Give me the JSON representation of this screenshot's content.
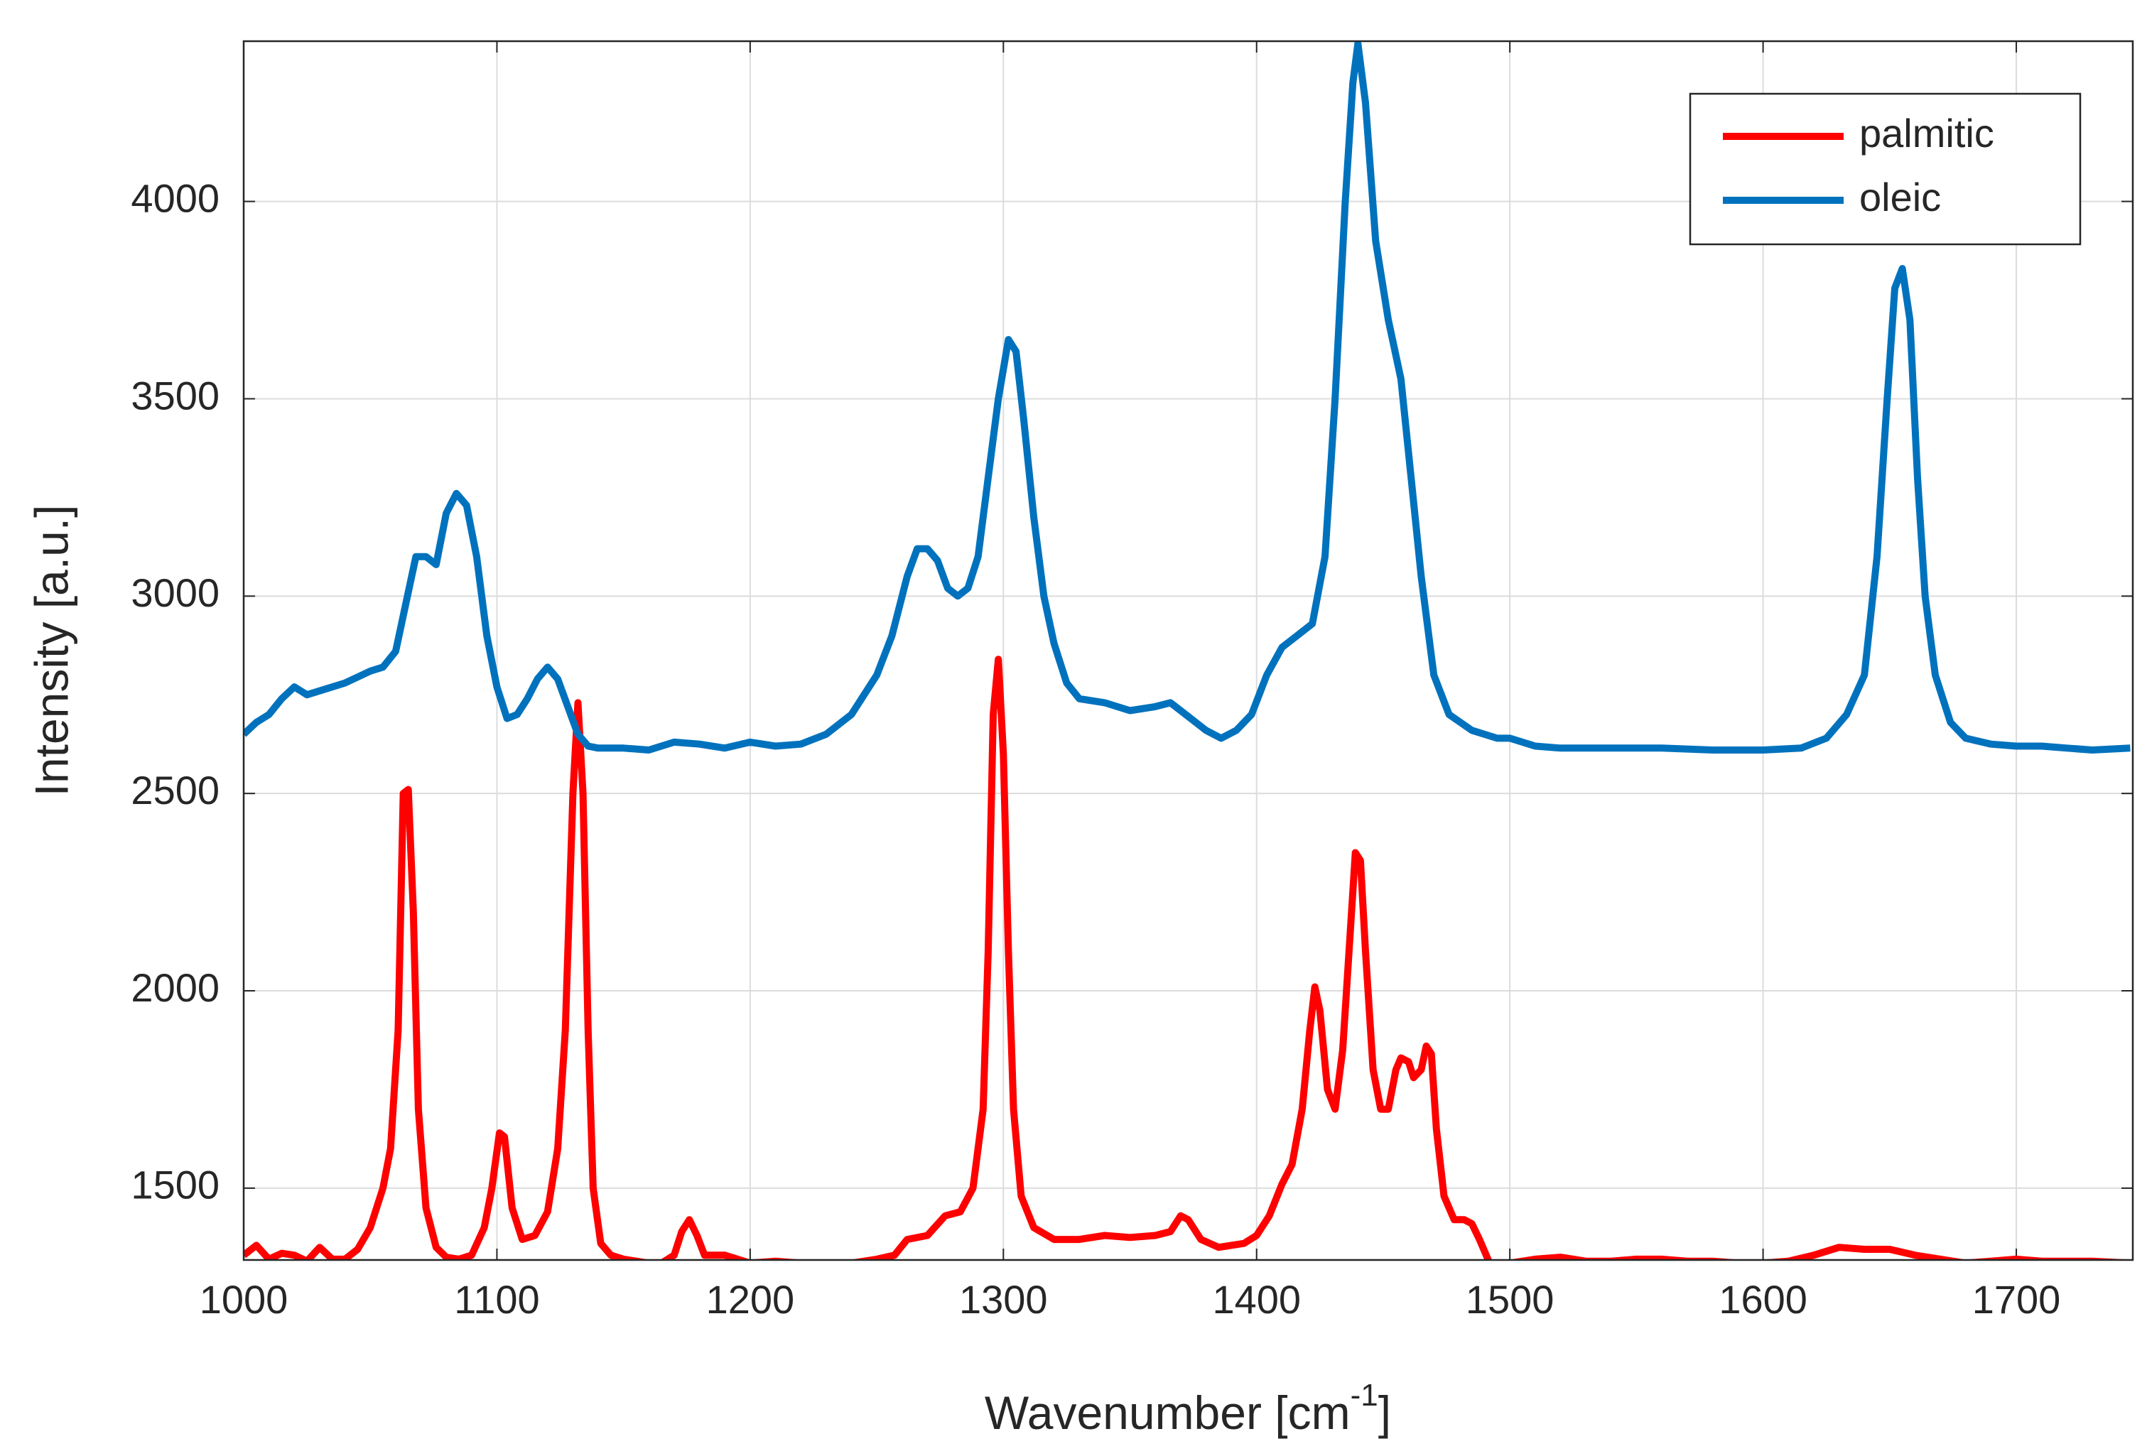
{
  "chart_data": {
    "type": "line",
    "x_label": "Wavenumber [cm",
    "x_label_sup": "-1",
    "x_label_end": "]",
    "y_label": "Intensity [a.u.]",
    "xlim": [
      1000,
      1746
    ],
    "ylim": [
      1318,
      4406
    ],
    "xticks": [
      1000,
      1100,
      1200,
      1300,
      1400,
      1500,
      1600,
      1700
    ],
    "yticks": [
      1500,
      2000,
      2500,
      3000,
      3500,
      4000
    ],
    "grid": true,
    "legend": "northeast",
    "series": [
      {
        "name": "palmitic",
        "color": "#ff0000",
        "x": [
          1000,
          1005,
          1010,
          1015,
          1020,
          1025,
          1030,
          1035,
          1040,
          1045,
          1050,
          1055,
          1058,
          1061,
          1063,
          1065,
          1067,
          1069,
          1072,
          1076,
          1080,
          1085,
          1090,
          1095,
          1098,
          1101,
          1103,
          1106,
          1110,
          1115,
          1120,
          1124,
          1127,
          1130,
          1132,
          1134,
          1136,
          1138,
          1141,
          1145,
          1150,
          1160,
          1165,
          1170,
          1173,
          1176,
          1179,
          1182,
          1190,
          1200,
          1210,
          1220,
          1230,
          1240,
          1250,
          1257,
          1262,
          1270,
          1277,
          1283,
          1288,
          1292,
          1294,
          1296,
          1298,
          1300,
          1302,
          1304,
          1307,
          1312,
          1320,
          1330,
          1340,
          1350,
          1360,
          1366,
          1370,
          1373,
          1378,
          1385,
          1395,
          1400,
          1405,
          1410,
          1414,
          1418,
          1421,
          1423,
          1425,
          1428,
          1431,
          1434,
          1437,
          1439,
          1441,
          1443,
          1446,
          1449,
          1452,
          1455,
          1457,
          1460,
          1462,
          1465,
          1467,
          1469,
          1471,
          1474,
          1478,
          1482,
          1485,
          1488,
          1492,
          1500,
          1510,
          1520,
          1530,
          1540,
          1550,
          1560,
          1570,
          1580,
          1590,
          1600,
          1610,
          1620,
          1630,
          1640,
          1650,
          1660,
          1670,
          1680,
          1690,
          1700,
          1710,
          1720,
          1730,
          1745
        ],
        "values": [
          1330,
          1355,
          1320,
          1335,
          1330,
          1315,
          1350,
          1320,
          1320,
          1345,
          1400,
          1500,
          1600,
          1900,
          2500,
          2510,
          2200,
          1700,
          1450,
          1350,
          1325,
          1320,
          1330,
          1400,
          1500,
          1640,
          1630,
          1450,
          1370,
          1380,
          1440,
          1600,
          1900,
          2500,
          2730,
          2500,
          1900,
          1500,
          1360,
          1330,
          1320,
          1310,
          1310,
          1330,
          1390,
          1420,
          1380,
          1330,
          1330,
          1310,
          1315,
          1310,
          1310,
          1310,
          1320,
          1330,
          1370,
          1380,
          1430,
          1440,
          1500,
          1700,
          2100,
          2700,
          2840,
          2600,
          2100,
          1700,
          1480,
          1400,
          1370,
          1370,
          1380,
          1375,
          1380,
          1390,
          1430,
          1420,
          1370,
          1350,
          1360,
          1380,
          1430,
          1510,
          1560,
          1700,
          1900,
          2010,
          1950,
          1750,
          1700,
          1850,
          2150,
          2350,
          2330,
          2100,
          1800,
          1700,
          1700,
          1800,
          1830,
          1820,
          1780,
          1800,
          1860,
          1840,
          1650,
          1480,
          1420,
          1420,
          1410,
          1370,
          1310,
          1310,
          1320,
          1325,
          1315,
          1315,
          1320,
          1320,
          1315,
          1315,
          1310,
          1310,
          1315,
          1330,
          1350,
          1345,
          1345,
          1330,
          1320,
          1310,
          1315,
          1320,
          1315,
          1315,
          1315,
          1310
        ]
      },
      {
        "name": "oleic",
        "color": "#0072bd",
        "x": [
          1000,
          1005,
          1010,
          1015,
          1020,
          1025,
          1030,
          1040,
          1050,
          1055,
          1060,
          1064,
          1068,
          1072,
          1076,
          1080,
          1084,
          1088,
          1092,
          1096,
          1100,
          1104,
          1108,
          1112,
          1116,
          1120,
          1124,
          1128,
          1132,
          1136,
          1140,
          1150,
          1160,
          1170,
          1180,
          1190,
          1200,
          1210,
          1220,
          1230,
          1240,
          1250,
          1256,
          1262,
          1266,
          1270,
          1274,
          1278,
          1282,
          1286,
          1290,
          1294,
          1298,
          1302,
          1305,
          1308,
          1312,
          1316,
          1320,
          1325,
          1330,
          1340,
          1350,
          1360,
          1366,
          1372,
          1380,
          1386,
          1392,
          1398,
          1404,
          1410,
          1416,
          1422,
          1427,
          1431,
          1435,
          1438,
          1440,
          1443,
          1447,
          1452,
          1457,
          1461,
          1465,
          1470,
          1476,
          1485,
          1495,
          1500,
          1510,
          1520,
          1540,
          1560,
          1580,
          1600,
          1615,
          1625,
          1633,
          1640,
          1645,
          1649,
          1652,
          1655,
          1658,
          1661,
          1664,
          1668,
          1674,
          1680,
          1690,
          1700,
          1710,
          1720,
          1730,
          1745
        ],
        "values": [
          2650,
          2680,
          2700,
          2740,
          2770,
          2750,
          2760,
          2780,
          2810,
          2820,
          2860,
          2980,
          3100,
          3100,
          3080,
          3210,
          3260,
          3230,
          3100,
          2900,
          2770,
          2690,
          2700,
          2740,
          2790,
          2820,
          2790,
          2720,
          2650,
          2620,
          2615,
          2615,
          2610,
          2630,
          2625,
          2615,
          2630,
          2620,
          2625,
          2650,
          2700,
          2800,
          2900,
          3050,
          3120,
          3120,
          3090,
          3020,
          3000,
          3020,
          3100,
          3300,
          3500,
          3650,
          3620,
          3450,
          3200,
          3000,
          2880,
          2780,
          2740,
          2730,
          2710,
          2720,
          2730,
          2700,
          2660,
          2640,
          2660,
          2700,
          2800,
          2870,
          2900,
          2930,
          3100,
          3500,
          4000,
          4300,
          4400,
          4250,
          3900,
          3700,
          3550,
          3300,
          3050,
          2800,
          2700,
          2660,
          2640,
          2640,
          2620,
          2615,
          2615,
          2615,
          2610,
          2610,
          2615,
          2640,
          2700,
          2800,
          3100,
          3500,
          3780,
          3830,
          3700,
          3300,
          3000,
          2800,
          2680,
          2640,
          2625,
          2620,
          2620,
          2615,
          2610,
          2615
        ]
      }
    ]
  }
}
